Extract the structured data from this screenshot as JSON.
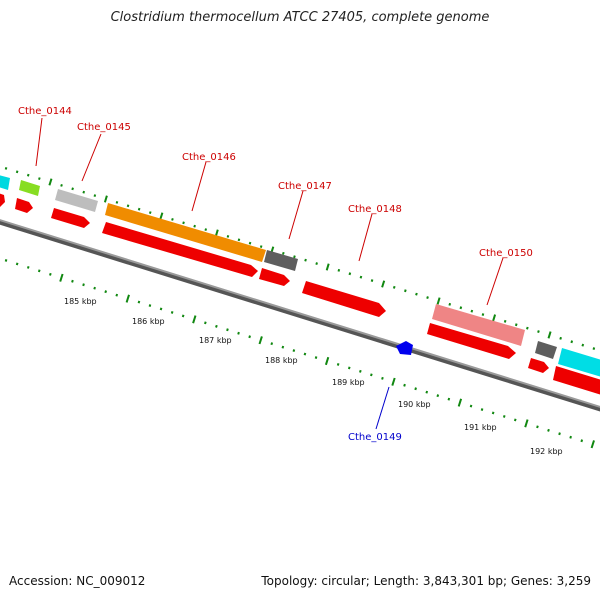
{
  "title": "Clostridium thermocellum ATCC 27405, complete genome",
  "footer": {
    "accession": "Accession: NC_009012",
    "summary": "Topology: circular; Length: 3,843,301 bp; Genes: 3,259"
  },
  "scale_labels": [
    "185 kbp",
    "186 kbp",
    "187 kbp",
    "188 kbp",
    "189 kbp",
    "190 kbp",
    "191 kbp",
    "192 kbp"
  ],
  "gene_labels": [
    {
      "text": "Cthe_0144",
      "color": "#cc0000"
    },
    {
      "text": "Cthe_0145",
      "color": "#cc0000"
    },
    {
      "text": "Cthe_0146",
      "color": "#cc0000"
    },
    {
      "text": "Cthe_0147",
      "color": "#cc0000"
    },
    {
      "text": "Cthe_0148",
      "color": "#cc0000"
    },
    {
      "text": "Cthe_0150",
      "color": "#cc0000"
    },
    {
      "text": "Cthe_0149",
      "color": "#0000cc"
    }
  ],
  "colors": {
    "cds": "#ee0000",
    "orange": "#f39200",
    "cyan": "#00e5ee",
    "lime": "#99ee33",
    "light_gray": "#c4c4c4",
    "dark_gray": "#666666",
    "pink": "#f08080",
    "blue": "#0000ee",
    "backbone": "#888888",
    "ticks": "#118811"
  }
}
